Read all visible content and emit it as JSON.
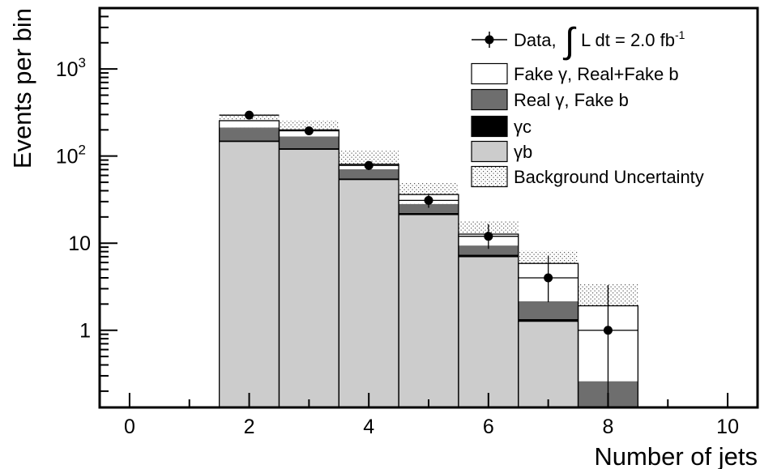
{
  "chart_data": {
    "type": "bar",
    "stacked": true,
    "ylog": true,
    "xlabel": "Number of jets",
    "ylabel": "Events per bin",
    "xlim": [
      -0.5,
      10.5
    ],
    "ylim": [
      0.13,
      5000
    ],
    "xticks": [
      {
        "v": 0,
        "label": "0"
      },
      {
        "v": 2,
        "label": "2"
      },
      {
        "v": 4,
        "label": "4"
      },
      {
        "v": 6,
        "label": "6"
      },
      {
        "v": 8,
        "label": "8"
      },
      {
        "v": 10,
        "label": "10"
      }
    ],
    "yticks": [
      {
        "v": 1,
        "label": "1",
        "sup": ""
      },
      {
        "v": 10,
        "label": "10",
        "sup": ""
      },
      {
        "v": 100,
        "label": "10",
        "sup": "2"
      },
      {
        "v": 1000,
        "label": "10",
        "sup": "3"
      }
    ],
    "categories": [
      2,
      3,
      4,
      5,
      6,
      7,
      8
    ],
    "series": [
      {
        "name": "γb",
        "color": "#cccccc",
        "values": [
          145,
          118,
          53,
          21,
          6.9,
          1.25,
          0
        ]
      },
      {
        "name": "γc",
        "color": "#000000",
        "values": [
          6,
          5,
          2.5,
          1.2,
          0.5,
          0.1,
          0
        ]
      },
      {
        "name": "Real γ, Fake b",
        "color": "#6e6e6e",
        "values": [
          62,
          45,
          15,
          6,
          2,
          0.8,
          0.26
        ]
      },
      {
        "name": "Fake γ, Real+Fake b",
        "color": "#ffffff",
        "values": [
          42,
          32,
          10,
          8,
          3.3,
          3.7,
          1.65
        ]
      }
    ],
    "band": {
      "name": "Background Uncertainty",
      "low": [
        200,
        150,
        65,
        28,
        9,
        4,
        1.1
      ],
      "high": [
        300,
        255,
        115,
        50,
        18,
        8.2,
        3.4
      ]
    },
    "data_points": {
      "name": "Data, ",
      "label_extra": "L dt = 2.0 fb",
      "label_sup": "-1",
      "x": [
        2,
        3,
        4,
        5,
        6,
        7,
        8
      ],
      "y": [
        295,
        195,
        78,
        31,
        12,
        4,
        1
      ],
      "err_low": [
        17,
        14,
        9,
        5.5,
        3.4,
        1.9,
        1
      ],
      "err_high": [
        17,
        14,
        9,
        5.5,
        4.5,
        3.2,
        2.3
      ]
    },
    "legend_position": "top-right"
  }
}
